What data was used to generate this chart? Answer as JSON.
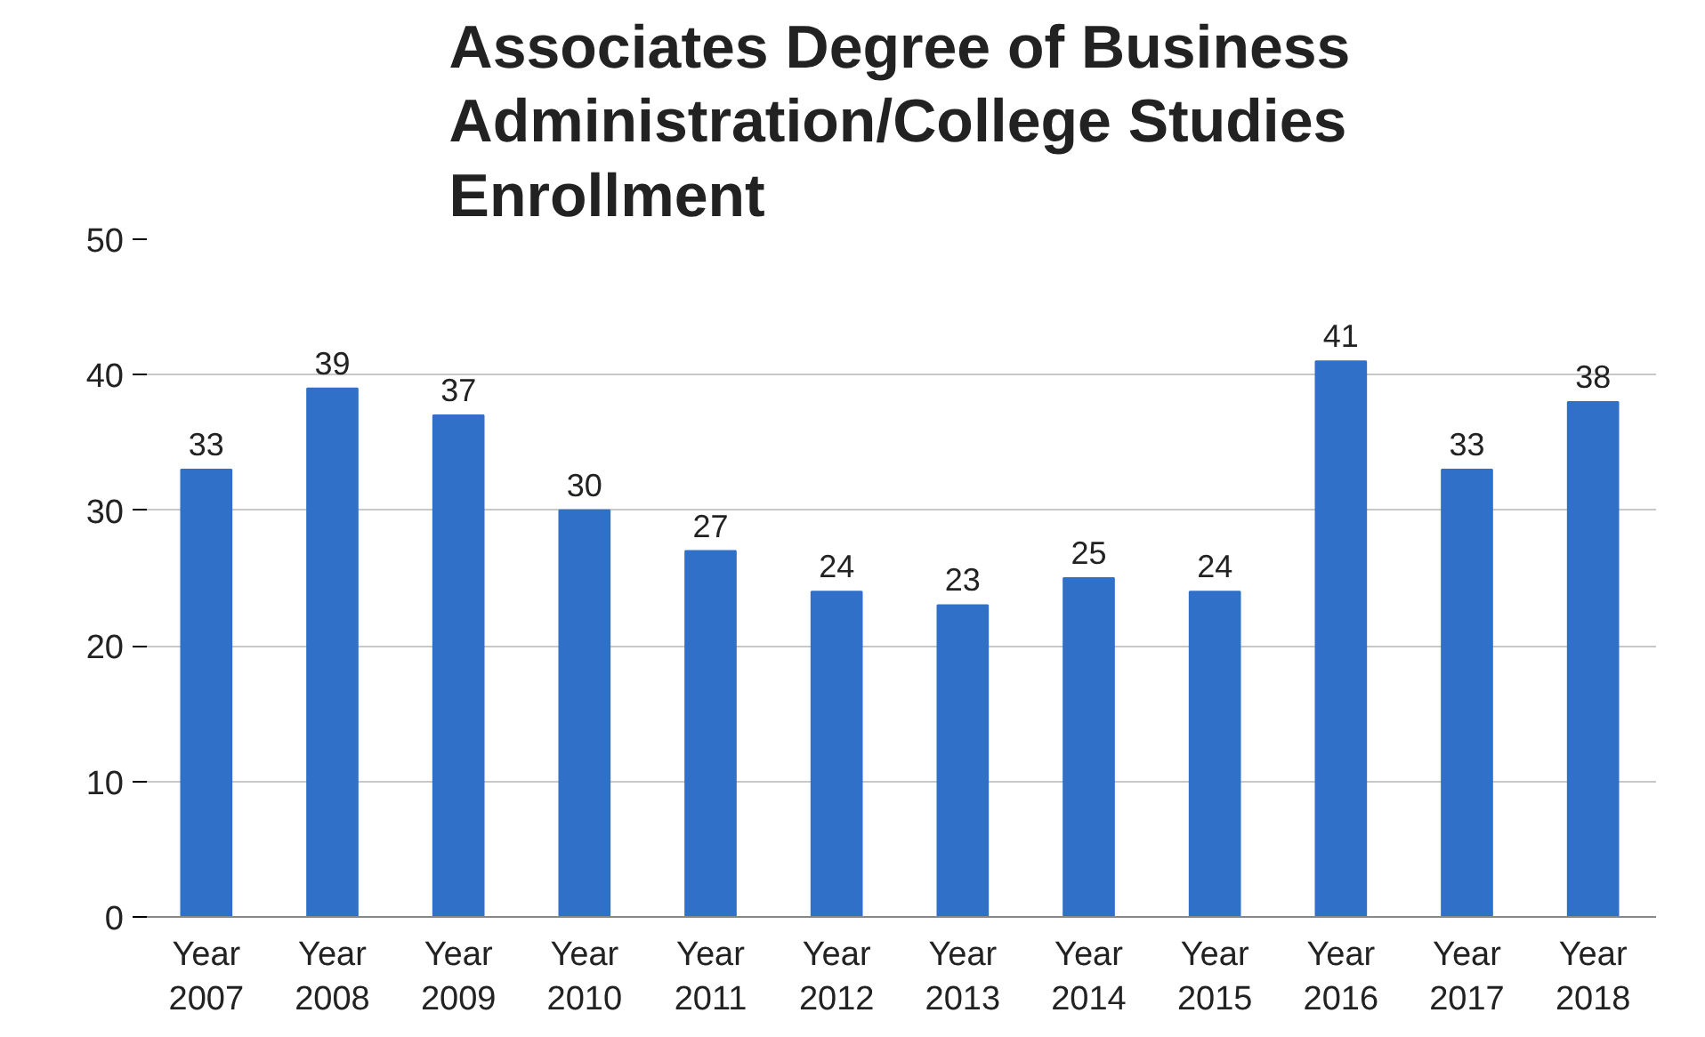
{
  "chart_data": {
    "type": "bar",
    "title": "Associates Degree of Business Administration/College Studies Enrollment",
    "categories": [
      "Year 2007",
      "Year 2008",
      "Year 2009",
      "Year 2010",
      "Year 2011",
      "Year 2012",
      "Year 2013",
      "Year 2014",
      "Year 2015",
      "Year 2016",
      "Year 2017",
      "Year 2018"
    ],
    "values": [
      33,
      39,
      37,
      30,
      27,
      24,
      23,
      25,
      24,
      41,
      33,
      38
    ],
    "color": "#3070c8",
    "ylim": [
      0,
      50
    ],
    "yticks": [
      0,
      10,
      20,
      30,
      40,
      50
    ],
    "grid": "y",
    "data_labels": true
  }
}
